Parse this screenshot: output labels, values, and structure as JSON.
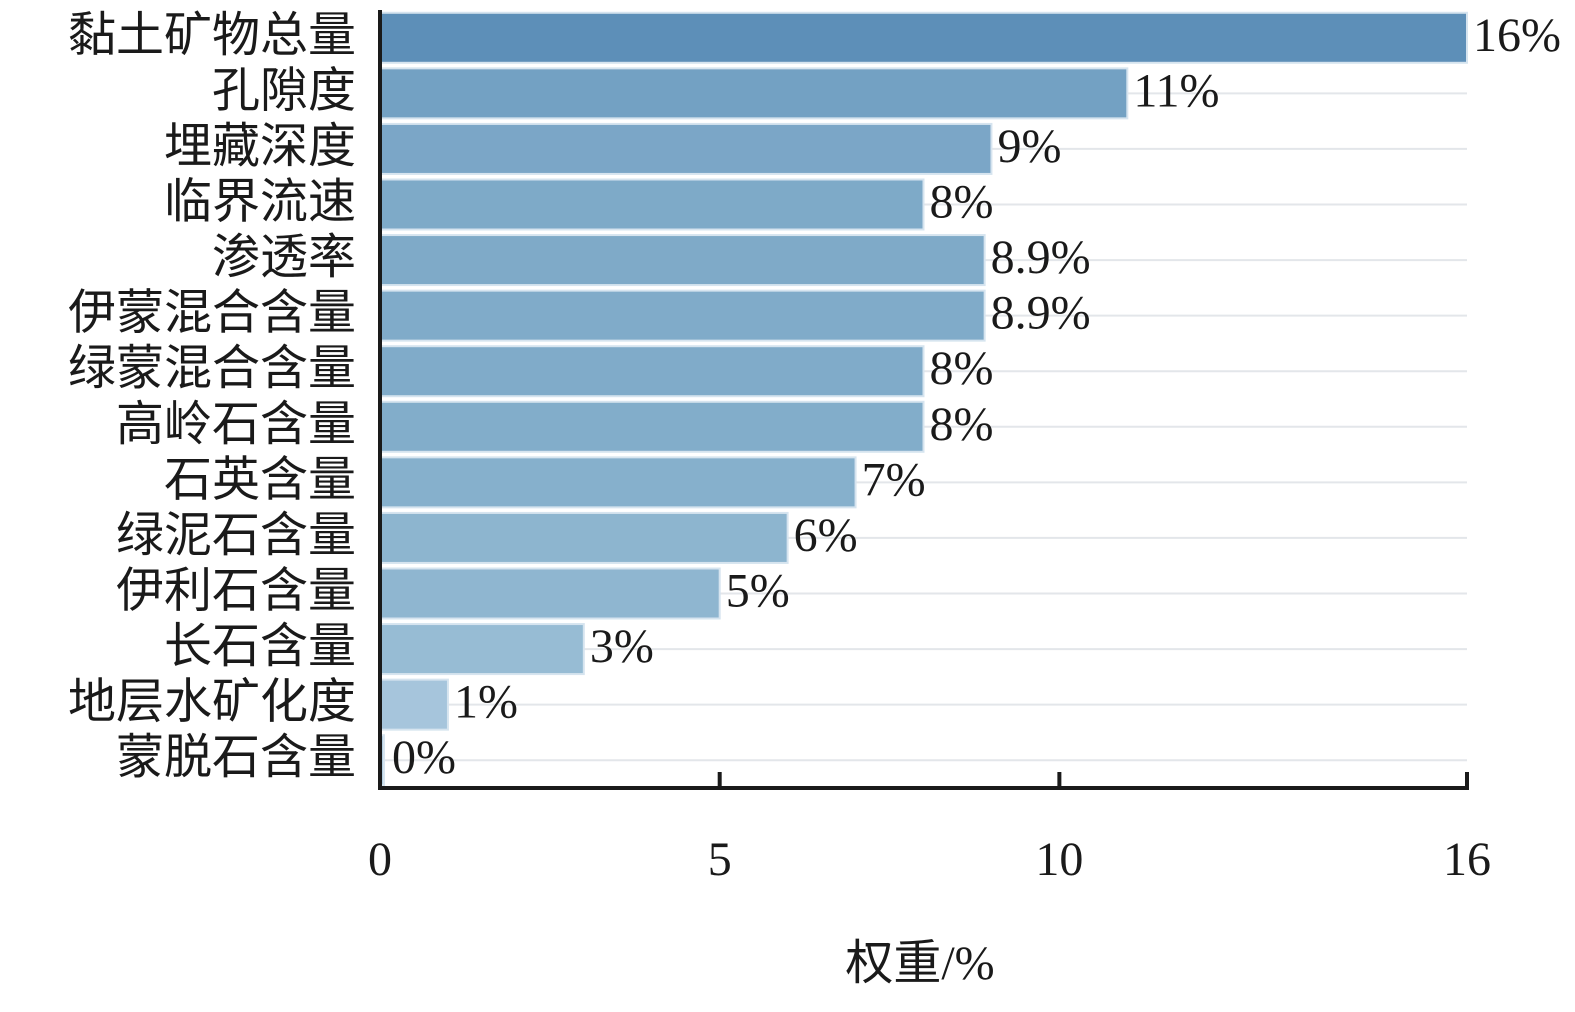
{
  "chart_data": {
    "type": "bar",
    "orientation": "horizontal",
    "xlabel": "权重/%",
    "categories": [
      "黏土矿物总量",
      "孔隙度",
      "埋藏深度",
      "临界流速",
      "渗透率",
      "伊蒙混合含量",
      "绿蒙混合含量",
      "高岭石含量",
      "石英含量",
      "绿泥石含量",
      "伊利石含量",
      "长石含量",
      "地层水矿化度",
      "蒙脱石含量"
    ],
    "values": [
      16,
      11,
      9,
      8,
      8.9,
      8.9,
      8,
      8,
      7,
      6,
      5,
      3,
      1,
      0
    ],
    "value_labels": [
      "16%",
      "11%",
      "9%",
      "8%",
      "8.9%",
      "8.9%",
      "8%",
      "8%",
      "7%",
      "6%",
      "5%",
      "3%",
      "1%",
      "0%"
    ],
    "colors": [
      "#5d8fb8",
      "#73a1c3",
      "#7ba6c7",
      "#7eaac8",
      "#7faac8",
      "#80abc9",
      "#80abc9",
      "#82adca",
      "#86b0cc",
      "#8db5cf",
      "#8fb6d0",
      "#97bcd4",
      "#a6c5dc",
      "#b4cfe2"
    ],
    "xlim": [
      0,
      16
    ],
    "xticks": [
      0,
      5,
      10,
      16
    ]
  }
}
